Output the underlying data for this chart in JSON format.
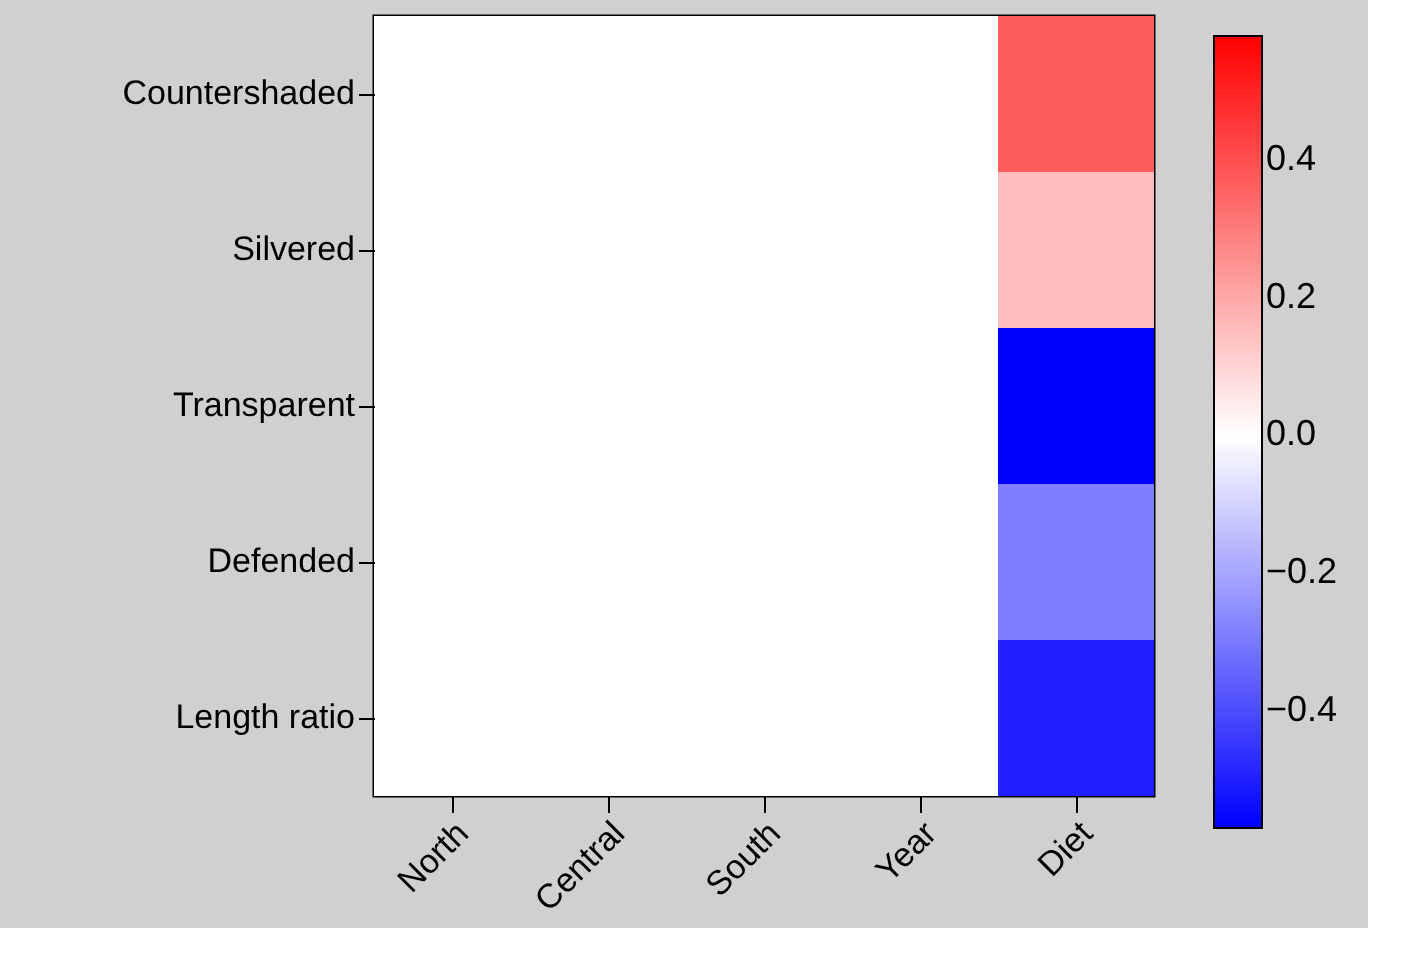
{
  "chart_data": {
    "type": "heatmap",
    "categories": [
      "North",
      "Central",
      "South",
      "Year",
      "Diet"
    ],
    "y_categories": [
      "Countershaded",
      "Silvered",
      "Transparent",
      "Defended",
      "Length ratio"
    ],
    "cells": [
      [
        0,
        0,
        0,
        0,
        0.37
      ],
      [
        0,
        0,
        0,
        0,
        0.15
      ],
      [
        0,
        0,
        0,
        0,
        -0.57
      ],
      [
        0,
        0,
        0,
        0,
        -0.29
      ],
      [
        0,
        0,
        0,
        0,
        -0.5
      ]
    ],
    "clim": [
      -0.57,
      0.58
    ],
    "cticks": [
      {
        "value": -0.4,
        "label": "−0.4"
      },
      {
        "value": -0.2,
        "label": "−0.2"
      },
      {
        "value": 0,
        "label": "0.0"
      },
      {
        "value": 0.2,
        "label": "0.2"
      },
      {
        "value": 0.4,
        "label": "0.4"
      }
    ]
  }
}
